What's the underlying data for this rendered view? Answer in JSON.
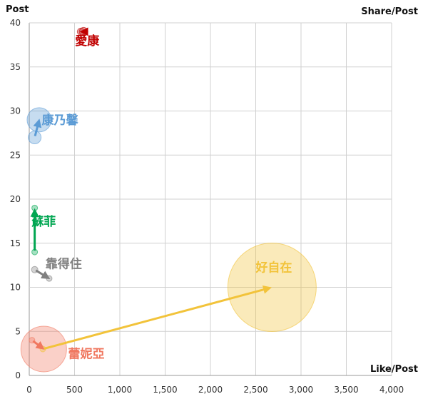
{
  "chart_data": {
    "type": "scatter",
    "title": "",
    "xlabel": "Like/Post",
    "ylabel": "Post",
    "size_label": "Share/Post",
    "xlim": [
      0,
      4000
    ],
    "ylim": [
      0,
      40
    ],
    "x_ticks": [
      0,
      500,
      1000,
      1500,
      2000,
      2500,
      3000,
      3500,
      4000
    ],
    "x_tick_labels": [
      "0",
      "500",
      "1,000",
      "1,500",
      "2,000",
      "2,500",
      "3,000",
      "3,500",
      "4,000"
    ],
    "y_ticks": [
      0,
      5,
      10,
      15,
      20,
      25,
      30,
      35,
      40
    ],
    "y_tick_labels": [
      "0",
      "5",
      "10",
      "15",
      "20",
      "25",
      "30",
      "35",
      "40"
    ],
    "grid": true,
    "series": [
      {
        "name": "愛康",
        "color": "#c00000",
        "label_pos": [
          640,
          37.5
        ],
        "points": [
          {
            "x": 570,
            "y": 39,
            "size": 0.05
          },
          {
            "x": 600,
            "y": 39,
            "size": 0.06
          }
        ]
      },
      {
        "name": "康乃馨",
        "color": "#5b9bd5",
        "label_pos": [
          340,
          28.5
        ],
        "points": [
          {
            "x": 60,
            "y": 27,
            "size": 0.09
          },
          {
            "x": 110,
            "y": 29,
            "size": 0.17
          }
        ]
      },
      {
        "name": "蘇菲",
        "color": "#00a651",
        "label_pos": [
          160,
          17
        ],
        "points": [
          {
            "x": 60,
            "y": 14,
            "size": 0.04
          },
          {
            "x": 60,
            "y": 19,
            "size": 0.04
          }
        ]
      },
      {
        "name": "靠得住",
        "color": "#808080",
        "label_pos": [
          380,
          12.2
        ],
        "points": [
          {
            "x": 60,
            "y": 12,
            "size": 0.045
          },
          {
            "x": 220,
            "y": 11,
            "size": 0.03
          }
        ]
      },
      {
        "name": "蕾妮亞",
        "color": "#f07860",
        "label_pos": [
          630,
          2
        ],
        "points": [
          {
            "x": 30,
            "y": 4,
            "size": 0.03
          },
          {
            "x": 160,
            "y": 3,
            "size": 0.32
          }
        ]
      },
      {
        "name": "好自在",
        "color": "#f2c33a",
        "label_pos": [
          2700,
          11.8
        ],
        "points": [
          {
            "x": 150,
            "y": 3,
            "size": 0.04
          },
          {
            "x": 2680,
            "y": 10,
            "size": 0.62
          }
        ]
      }
    ]
  }
}
